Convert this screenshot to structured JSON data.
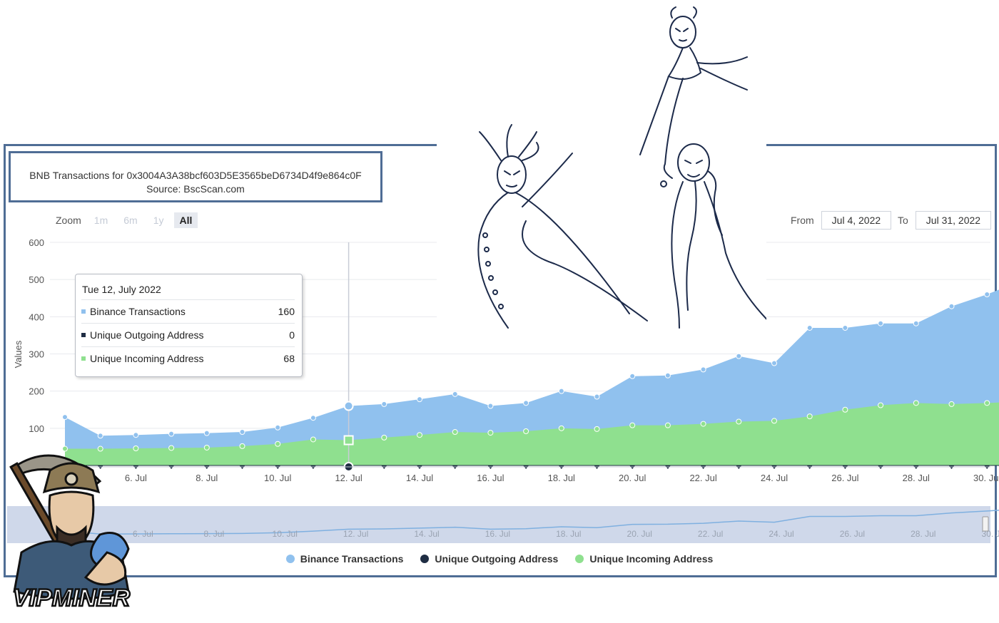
{
  "title": {
    "line1": "BNB Transactions for 0x3004A3A38bcf603D5E3565beD6734D4f9e864c0F",
    "line2": "Source: BscScan.com"
  },
  "zoom": {
    "label": "Zoom",
    "buttons": [
      "1m",
      "6m",
      "1y",
      "All"
    ],
    "active": "All"
  },
  "range": {
    "from_label": "From",
    "from_value": "Jul 4, 2022",
    "to_label": "To",
    "to_value": "Jul 31, 2022"
  },
  "tooltip": {
    "date": "Tue 12, July 2022",
    "rows": [
      {
        "label": "Binance Transactions",
        "value": "160"
      },
      {
        "label": "Unique Outgoing Address",
        "value": "0"
      },
      {
        "label": "Unique Incoming Address",
        "value": "68"
      }
    ]
  },
  "legend": [
    "Binance Transactions",
    "Unique Outgoing Address",
    "Unique Incoming Address"
  ],
  "logo_text": "VIPMINER",
  "colors": {
    "binance": "#90c1ee",
    "outgoing": "#1f2d43",
    "incoming": "#8fe08f",
    "frame": "#4f6d95",
    "navigator_bg": "#cfd8ea",
    "navigator_line": "#7fb0e0"
  },
  "chart_data": {
    "type": "area",
    "ylabel": "Values",
    "ylim": [
      0,
      600
    ],
    "yticks": [
      100,
      200,
      300,
      400,
      500,
      600
    ],
    "x_days": [
      4,
      5,
      6,
      7,
      8,
      9,
      10,
      11,
      12,
      13,
      14,
      15,
      16,
      17,
      18,
      19,
      20,
      21,
      22,
      23,
      24,
      25,
      26,
      27,
      28,
      29,
      30,
      31
    ],
    "xtick_labels": [
      "6. Jul",
      "8. Jul",
      "10. Jul",
      "12. Jul",
      "14. Jul",
      "16. Jul",
      "18. Jul",
      "20. Jul",
      "22. Jul",
      "24. Jul",
      "26. Jul",
      "28. Jul",
      "30. Jul"
    ],
    "xtick_days": [
      6,
      8,
      10,
      12,
      14,
      16,
      18,
      20,
      22,
      24,
      26,
      28,
      30
    ],
    "series": [
      {
        "name": "Binance Transactions",
        "values": [
          130,
          80,
          82,
          85,
          87,
          90,
          102,
          128,
          160,
          165,
          178,
          192,
          160,
          168,
          200,
          185,
          240,
          242,
          258,
          294,
          275,
          370,
          370,
          382,
          382,
          428,
          460,
          498
        ]
      },
      {
        "name": "Unique Outgoing Address",
        "values": [
          0,
          0,
          0,
          0,
          0,
          0,
          0,
          0,
          0,
          0,
          0,
          0,
          0,
          0,
          0,
          0,
          0,
          0,
          0,
          0,
          0,
          0,
          0,
          0,
          0,
          0,
          0,
          0
        ]
      },
      {
        "name": "Unique Incoming Address",
        "values": [
          45,
          45,
          46,
          47,
          48,
          52,
          58,
          70,
          68,
          75,
          82,
          90,
          88,
          92,
          100,
          98,
          108,
          108,
          112,
          118,
          120,
          132,
          150,
          162,
          168,
          165,
          168,
          172
        ]
      }
    ],
    "highlight_day": 12,
    "legend_position": "bottom-center"
  }
}
